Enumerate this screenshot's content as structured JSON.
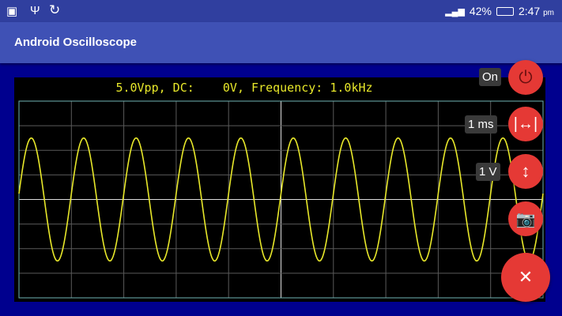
{
  "status_bar": {
    "icons": [
      "code-icon",
      "usb-icon",
      "sync-icon"
    ],
    "battery": "42%",
    "time": "2:47",
    "ampm": "pm"
  },
  "app_bar": {
    "title": "Android Oscilloscope"
  },
  "scope": {
    "readout": "5.0Vpp, DC:    0V, Frequency: 1.0kHz",
    "vpp": 5.0,
    "dc_offset_v": 0,
    "frequency_hz": 1000,
    "time_per_div_ms": 1,
    "volts_per_div": 1,
    "h_divisions": 10,
    "v_divisions": 8,
    "trace_color": "#e8e82a",
    "grid_color": "#5a5a5a"
  },
  "controls": {
    "power_label": "On",
    "timebase_label": "1 ms",
    "volts_label": "1 V",
    "accent": "#e53935"
  }
}
